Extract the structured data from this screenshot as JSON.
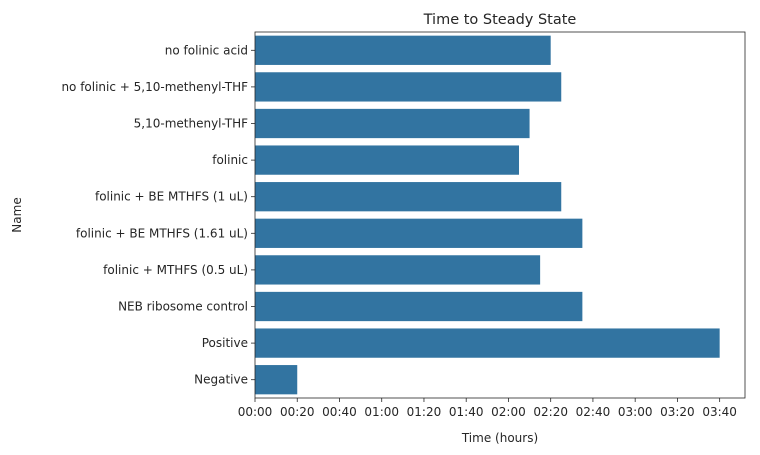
{
  "chart_data": {
    "type": "bar",
    "orientation": "horizontal",
    "title": "Time to Steady State",
    "xlabel": "Time (hours)",
    "ylabel": "Name",
    "categories": [
      "no folinic acid",
      "no folinic + 5,10-methenyl-THF",
      "5,10-methenyl-THF",
      "folinic",
      "folinic + BE MTHFS (1 uL)",
      "folinic + BE MTHFS (1.61 uL)",
      "folinic + MTHFS (0.5 uL)",
      "NEB ribosome control",
      "Positive",
      "Negative"
    ],
    "values_minutes": [
      140,
      145,
      130,
      125,
      145,
      155,
      135,
      155,
      220,
      20
    ],
    "xlim_minutes": [
      0,
      232
    ],
    "xticks_minutes": [
      0,
      20,
      40,
      60,
      80,
      100,
      120,
      140,
      160,
      180,
      200,
      220
    ],
    "xtick_labels": [
      "00:00",
      "00:20",
      "00:40",
      "01:00",
      "01:20",
      "01:40",
      "02:00",
      "02:20",
      "02:40",
      "03:00",
      "03:20",
      "03:40"
    ],
    "bar_color": "#3274a1",
    "grid": false,
    "legend": "none"
  }
}
